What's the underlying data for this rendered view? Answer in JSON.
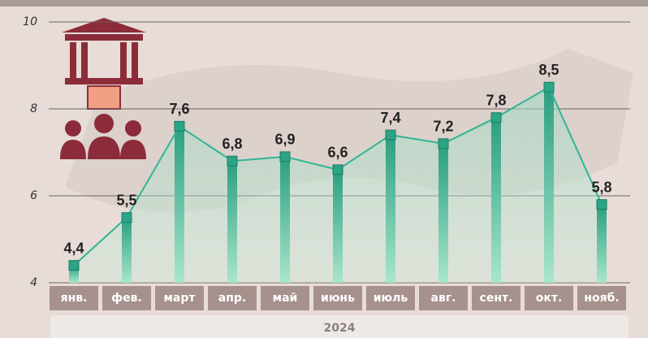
{
  "chart_data": {
    "type": "bar-line",
    "categories": [
      "янв.",
      "фев.",
      "март",
      "апр.",
      "май",
      "июнь",
      "июль",
      "авг.",
      "сент.",
      "окт.",
      "нояб."
    ],
    "values": [
      4.4,
      5.5,
      7.6,
      6.8,
      6.9,
      6.6,
      7.4,
      7.2,
      7.8,
      8.5,
      5.8
    ],
    "value_labels": [
      "4,4",
      "5,5",
      "7,6",
      "6,8",
      "6,9",
      "6,6",
      "7,4",
      "7,2",
      "7,8",
      "8,5",
      "5,8"
    ],
    "xlabel": "2024",
    "color": "#2aa586",
    "line_color": "#2fb596",
    "ylim": [
      4,
      10
    ],
    "yticks": [
      4,
      6,
      8,
      10
    ],
    "grid": true
  }
}
